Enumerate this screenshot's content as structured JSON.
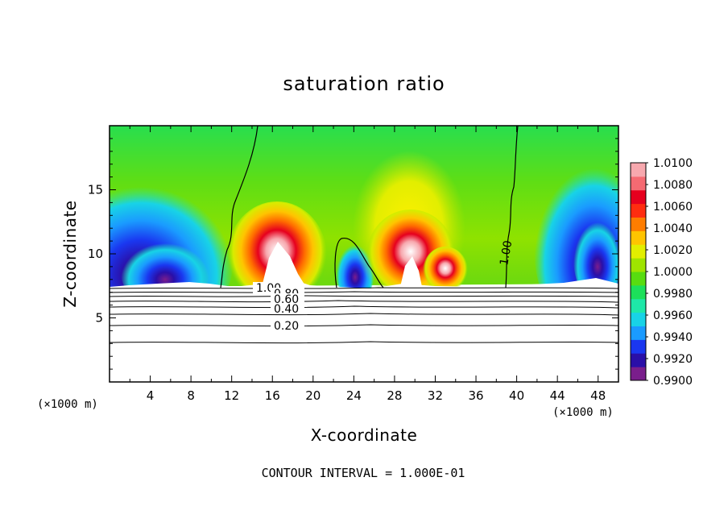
{
  "chart_data": {
    "type": "heatmap",
    "title": "saturation ratio",
    "xlabel": "X-coordinate",
    "ylabel": "Z-coordinate",
    "x_unit": "(×1000 m)",
    "x_unit_right": "(×1000 m)",
    "xlim": [
      0,
      50
    ],
    "ylim": [
      0,
      20
    ],
    "x_ticks": [
      "4",
      "8",
      "12",
      "16",
      "20",
      "24",
      "28",
      "32",
      "36",
      "40",
      "44",
      "48"
    ],
    "x_tick_values": [
      4,
      8,
      12,
      16,
      20,
      24,
      28,
      32,
      36,
      40,
      44,
      48
    ],
    "y_ticks": [
      "5",
      "10",
      "15"
    ],
    "y_tick_values": [
      5,
      10,
      15
    ],
    "colorbar": {
      "labels": [
        "1.0100",
        "1.0080",
        "1.0060",
        "1.0040",
        "1.0020",
        "1.0000",
        "0.9980",
        "0.9960",
        "0.9940",
        "0.9920",
        "0.9900"
      ],
      "min": 0.99,
      "max": 1.01,
      "colors": [
        "#7a1e8c",
        "#2a0fa8",
        "#1a37f0",
        "#1a9bff",
        "#18d3e6",
        "#1ee8a8",
        "#1ce05a",
        "#58dc10",
        "#9fe400",
        "#e2ee00",
        "#ffc400",
        "#ff7d00",
        "#ff2d10",
        "#e6001e",
        "#f56a72",
        "#f7a8ae"
      ]
    },
    "contour_labels": [
      "1.00",
      "0.80",
      "0.60",
      "0.40",
      "0.20",
      "1.00"
    ],
    "annotation": "CONTOUR INTERVAL = 1.000E-01"
  }
}
